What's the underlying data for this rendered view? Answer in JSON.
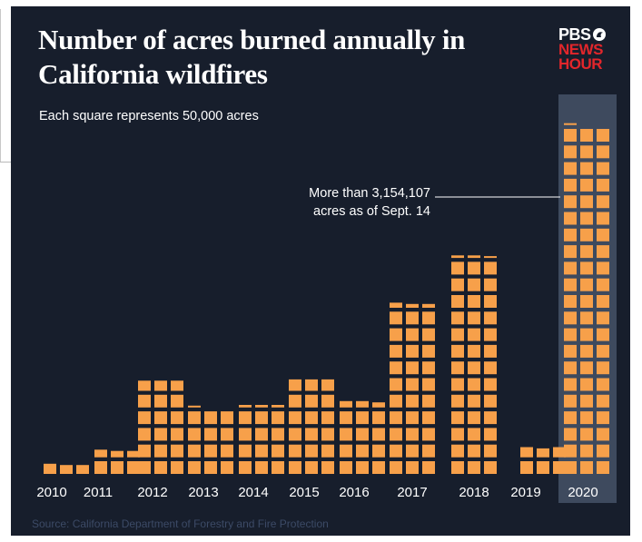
{
  "title": "Number of acres burned annually in California wildfires",
  "subtitle": "Each square represents 50,000 acres",
  "logo": {
    "line1": "PBS",
    "line2": "NEWS",
    "line3": "HOUR"
  },
  "annotation": {
    "line1": "More than 3,154,107",
    "line2": "acres as of Sept. 14"
  },
  "source": "Source: California Department of Forestry and Fire Protection",
  "colors": {
    "background": "#171e2c",
    "square": "#f7a04a",
    "highlight_column": "#3e4a5e",
    "text": "#ffffff",
    "source_text": "#3c4a66",
    "logo_red": "#e2262b"
  },
  "chart_data": {
    "type": "bar",
    "unit": "acres",
    "square_value": 50000,
    "title": "Number of acres burned annually in California wildfires",
    "subtitle": "Each square represents 50,000 acres",
    "categories": [
      "2010",
      "2011",
      "2012",
      "2013",
      "2014",
      "2015",
      "2016",
      "2017",
      "2018",
      "2019",
      "2020"
    ],
    "values": [
      109000,
      230000,
      870000,
      605000,
      625000,
      880000,
      670000,
      1550000,
      1975000,
      260000,
      3154107
    ],
    "highlight": "2020",
    "annotation": "More than 3,154,107 acres as of Sept. 14",
    "xlabel": "",
    "ylabel": "",
    "grid": false,
    "legend": "none"
  }
}
